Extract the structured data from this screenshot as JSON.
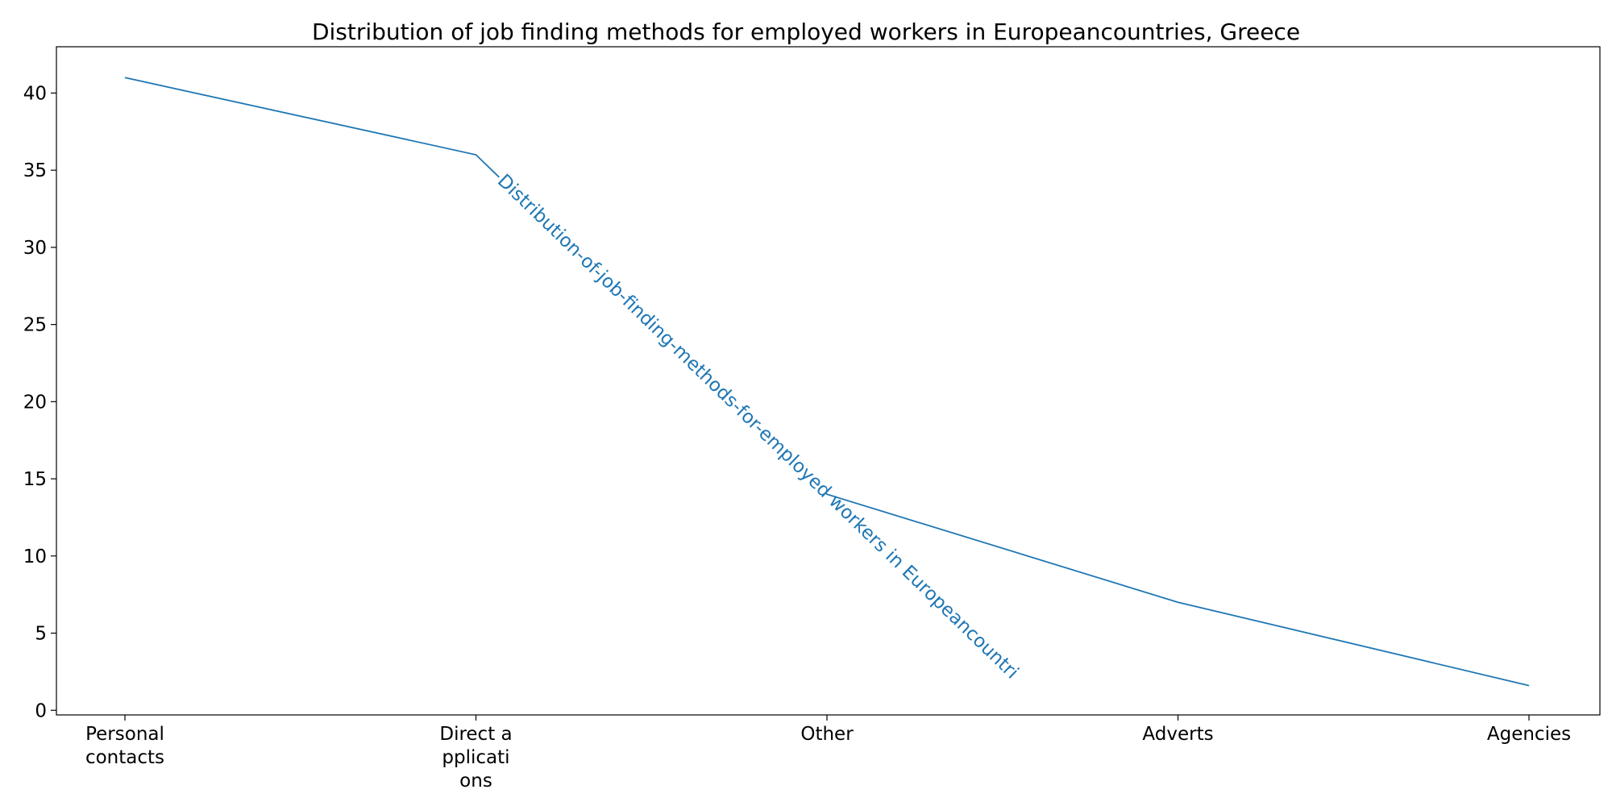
{
  "chart_data": {
    "type": "line",
    "title": "Distribution of job finding methods for employed workers in Europeancountries, Greece",
    "xlabel": "",
    "ylabel": "",
    "categories": [
      [
        "Personal",
        "contacts"
      ],
      [
        "Direct a",
        "pplicati",
        "ons"
      ],
      [
        "Other"
      ],
      [
        "Adverts"
      ],
      [
        "Agencies"
      ]
    ],
    "series": [
      {
        "label_text": "Distribution-of-job-finding-methods-for-employed workers in Europeancountri",
        "values": [
          41,
          36,
          14,
          7,
          1.6
        ]
      }
    ],
    "yticks": [
      "0",
      "5",
      "10",
      "15",
      "20",
      "25",
      "30",
      "35",
      "40"
    ],
    "ylim": [
      -0.3,
      43
    ],
    "grid": false,
    "colors": {
      "line": "#1f77b4",
      "axes": "#000000"
    }
  }
}
